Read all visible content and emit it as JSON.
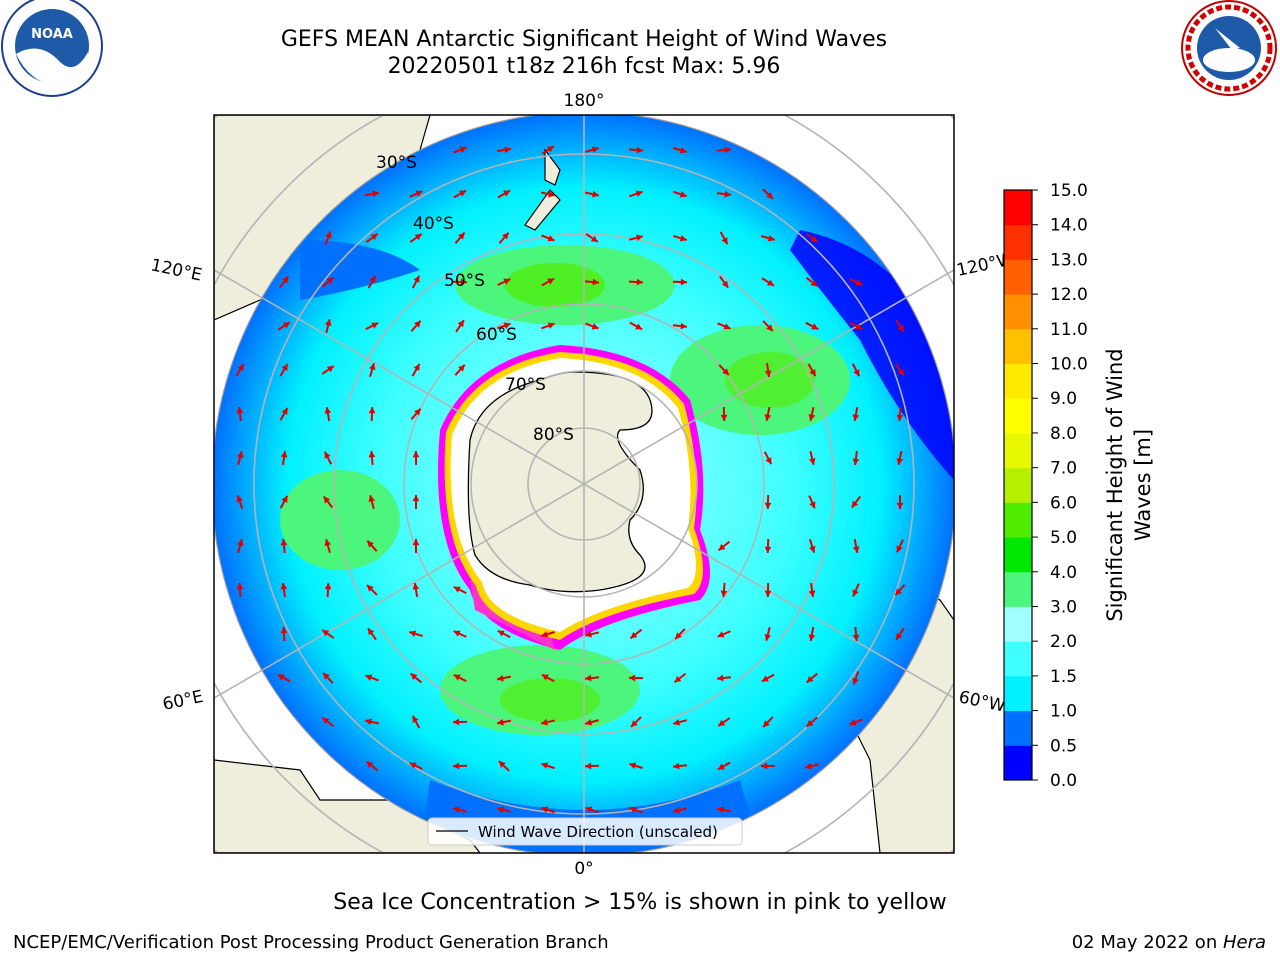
{
  "header": {
    "title_line1": "GEFS MEAN Antarctic Significant Height of Wind Waves",
    "title_line2": "20220501 t18z 216h fcst   Max: 5.96"
  },
  "logos": {
    "left": {
      "name": "noaa-logo",
      "text": "NOAA",
      "ring_text": "NATIONAL OCEANIC AND ATMOSPHERIC ADMINISTRATION · U.S. DEPARTMENT OF COMMERCE"
    },
    "right": {
      "name": "nws-logo",
      "ring_text": "NATIONAL WEATHER SERVICE"
    }
  },
  "map": {
    "projection": "south polar stereographic",
    "longitude_labels": {
      "top": "180°",
      "bottom": "0°",
      "upper_left": "120°E",
      "upper_right": "120°W",
      "lower_left": "60°E",
      "lower_right": "60°W"
    },
    "latitude_labels": [
      "30°S",
      "40°S",
      "50°S",
      "60°S",
      "70°S",
      "80°S"
    ],
    "legend_label": "Wind Wave Direction (unscaled)",
    "arrow_color": "#e00000",
    "land_color": "#efeedc",
    "ice_colors": [
      "#ff00ff",
      "#ffd700"
    ]
  },
  "colorbar": {
    "label_line1": "Significant Height of Wind",
    "label_line2": "Waves [m]",
    "ticks": [
      "0.0",
      "0.5",
      "1.0",
      "1.5",
      "2.0",
      "3.0",
      "4.0",
      "5.0",
      "6.0",
      "7.0",
      "8.0",
      "9.0",
      "10.0",
      "11.0",
      "12.0",
      "13.0",
      "14.0",
      "15.0"
    ],
    "colors": [
      "#0000ff",
      "#0070ff",
      "#00f0ff",
      "#40ffff",
      "#a0ffff",
      "#4cf57c",
      "#00e800",
      "#50ec00",
      "#b4f000",
      "#e8f800",
      "#ffff00",
      "#ffea00",
      "#ffc000",
      "#ff9000",
      "#ff6000",
      "#ff3000",
      "#ff0000"
    ]
  },
  "footer": {
    "note": "Sea Ice Concentration > 15% is shown in pink to yellow",
    "left": "NCEP/EMC/Verification Post Processing Product Generation Branch",
    "right_date": "02 May 2022 on ",
    "right_host": "Hera"
  }
}
